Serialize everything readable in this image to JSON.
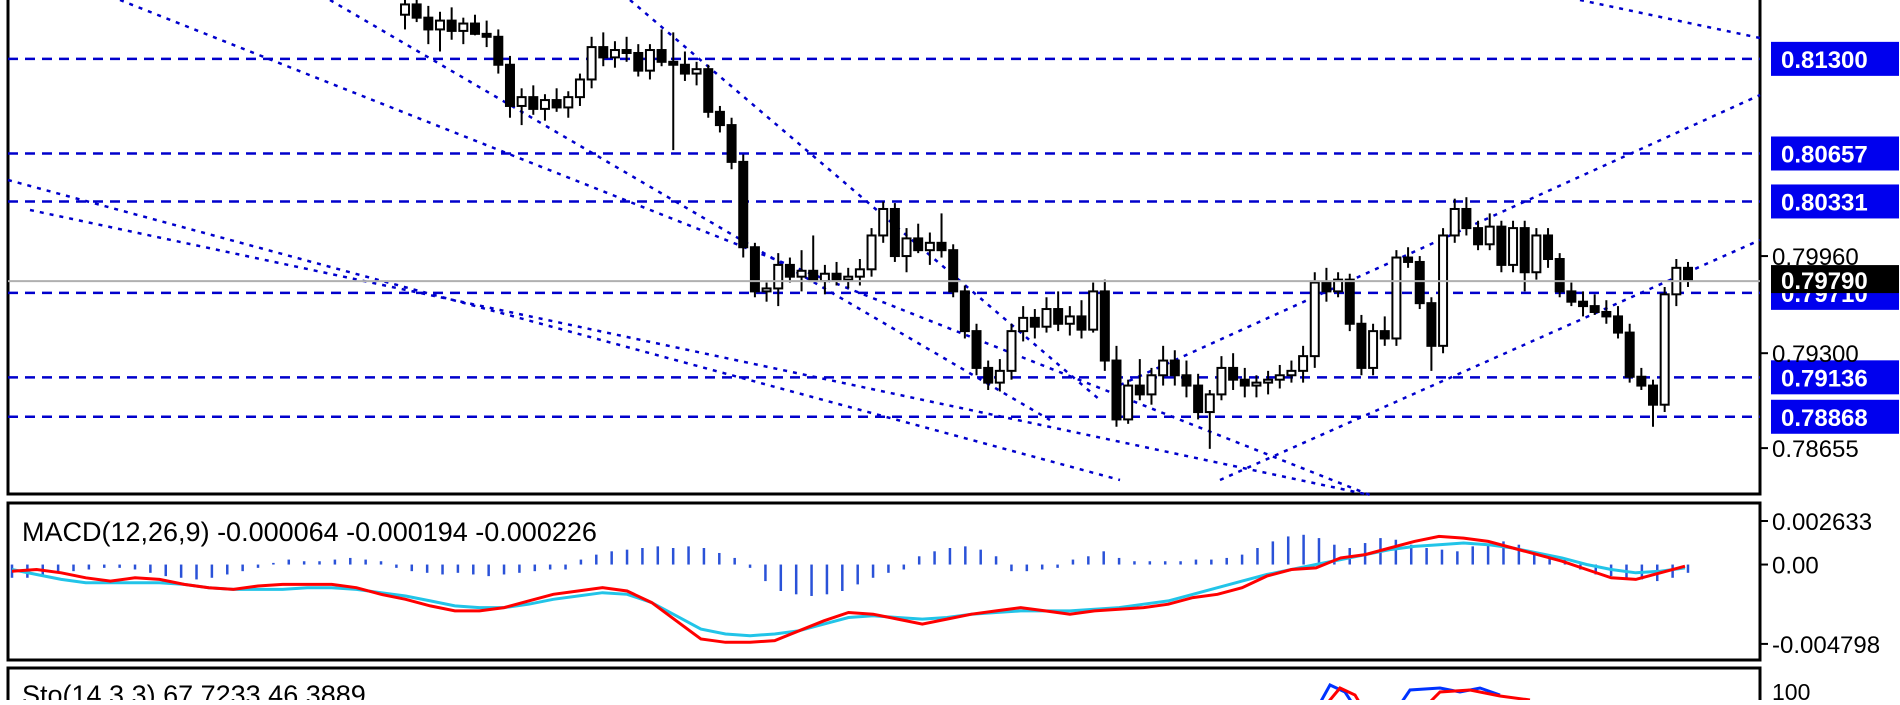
{
  "chart_data": [
    {
      "type": "candlestick",
      "panel": "price",
      "ylim": [
        0.7835,
        0.817
      ],
      "axis_ticks": [
        "0.79960",
        "0.79300",
        "0.78655"
      ],
      "level_lines": [
        {
          "label": "0.81300",
          "value": 0.813
        },
        {
          "label": "0.80657",
          "value": 0.80657
        },
        {
          "label": "0.80331",
          "value": 0.80331
        },
        {
          "label": "0.79710",
          "value": 0.7971
        },
        {
          "label": "0.79136",
          "value": 0.79136
        },
        {
          "label": "0.78868",
          "value": 0.78868
        }
      ],
      "current_price": {
        "label": "0.79790",
        "value": 0.7979
      },
      "candles": [
        [
          0.816,
          0.8171,
          0.815,
          0.8167
        ],
        [
          0.8167,
          0.817,
          0.8155,
          0.8158
        ],
        [
          0.8158,
          0.8166,
          0.814,
          0.815
        ],
        [
          0.815,
          0.8162,
          0.8135,
          0.8156
        ],
        [
          0.8156,
          0.8165,
          0.8143,
          0.8149
        ],
        [
          0.8149,
          0.8158,
          0.814,
          0.8154
        ],
        [
          0.8154,
          0.816,
          0.8146,
          0.8147
        ],
        [
          0.8147,
          0.8156,
          0.8138,
          0.8145
        ],
        [
          0.8145,
          0.815,
          0.812,
          0.8126
        ],
        [
          0.8126,
          0.8132,
          0.809,
          0.8098
        ],
        [
          0.8098,
          0.811,
          0.8085,
          0.8104
        ],
        [
          0.8104,
          0.8112,
          0.8092,
          0.8096
        ],
        [
          0.8096,
          0.8106,
          0.8088,
          0.8102
        ],
        [
          0.8102,
          0.811,
          0.8094,
          0.8097
        ],
        [
          0.8097,
          0.8108,
          0.809,
          0.8104
        ],
        [
          0.8104,
          0.812,
          0.8098,
          0.8116
        ],
        [
          0.8116,
          0.8145,
          0.811,
          0.8138
        ],
        [
          0.8138,
          0.8148,
          0.8125,
          0.8131
        ],
        [
          0.8131,
          0.8142,
          0.8124,
          0.8136
        ],
        [
          0.8136,
          0.8145,
          0.8128,
          0.8134
        ],
        [
          0.8134,
          0.814,
          0.8118,
          0.8122
        ],
        [
          0.8122,
          0.814,
          0.8116,
          0.8136
        ],
        [
          0.8136,
          0.815,
          0.8125,
          0.8128
        ],
        [
          0.8128,
          0.8148,
          0.8068,
          0.8126
        ],
        [
          0.8126,
          0.8135,
          0.8115,
          0.812
        ],
        [
          0.812,
          0.8128,
          0.8112,
          0.8123
        ],
        [
          0.8123,
          0.8126,
          0.809,
          0.8094
        ],
        [
          0.8094,
          0.8098,
          0.808,
          0.8085
        ],
        [
          0.8085,
          0.809,
          0.8055,
          0.806
        ],
        [
          0.806,
          0.8065,
          0.7995,
          0.8002
        ],
        [
          0.8002,
          0.8005,
          0.7968,
          0.7972
        ],
        [
          0.7972,
          0.7978,
          0.7965,
          0.7974
        ],
        [
          0.7974,
          0.7998,
          0.7962,
          0.799
        ],
        [
          0.799,
          0.7995,
          0.7978,
          0.7982
        ],
        [
          0.7982,
          0.8,
          0.7972,
          0.7986
        ],
        [
          0.7986,
          0.801,
          0.798,
          0.7979
        ],
        [
          0.7979,
          0.799,
          0.797,
          0.7984
        ],
        [
          0.7984,
          0.7992,
          0.7976,
          0.798
        ],
        [
          0.798,
          0.7988,
          0.7974,
          0.7982
        ],
        [
          0.7982,
          0.7994,
          0.7976,
          0.7987
        ],
        [
          0.7987,
          0.8015,
          0.7982,
          0.801
        ],
        [
          0.801,
          0.8033,
          0.8005,
          0.8028
        ],
        [
          0.8028,
          0.8032,
          0.7992,
          0.7996
        ],
        [
          0.7996,
          0.8015,
          0.7985,
          0.8008
        ],
        [
          0.8008,
          0.8018,
          0.7998,
          0.8
        ],
        [
          0.8,
          0.8012,
          0.799,
          0.8005
        ],
        [
          0.8005,
          0.8025,
          0.7995,
          0.8
        ],
        [
          0.8,
          0.8004,
          0.7968,
          0.7972
        ],
        [
          0.7972,
          0.7976,
          0.794,
          0.7945
        ],
        [
          0.7945,
          0.795,
          0.7915,
          0.792
        ],
        [
          0.792,
          0.7925,
          0.7905,
          0.791
        ],
        [
          0.791,
          0.7926,
          0.7904,
          0.7918
        ],
        [
          0.7918,
          0.795,
          0.7912,
          0.7945
        ],
        [
          0.7945,
          0.7962,
          0.7938,
          0.7954
        ],
        [
          0.7954,
          0.796,
          0.794,
          0.7948
        ],
        [
          0.7948,
          0.7968,
          0.7944,
          0.796
        ],
        [
          0.796,
          0.7972,
          0.7945,
          0.795
        ],
        [
          0.795,
          0.7962,
          0.7942,
          0.7955
        ],
        [
          0.7955,
          0.7966,
          0.794,
          0.7946
        ],
        [
          0.7946,
          0.7978,
          0.7944,
          0.7972
        ],
        [
          0.7972,
          0.798,
          0.7918,
          0.7925
        ],
        [
          0.7925,
          0.7935,
          0.788,
          0.7885
        ],
        [
          0.7885,
          0.7912,
          0.7882,
          0.7908
        ],
        [
          0.7908,
          0.7926,
          0.7898,
          0.7902
        ],
        [
          0.7902,
          0.792,
          0.7895,
          0.7915
        ],
        [
          0.7915,
          0.7935,
          0.7908,
          0.7925
        ],
        [
          0.7925,
          0.7932,
          0.7908,
          0.7915
        ],
        [
          0.7915,
          0.7925,
          0.79,
          0.7908
        ],
        [
          0.7908,
          0.7916,
          0.7885,
          0.789
        ],
        [
          0.789,
          0.7905,
          0.7865,
          0.7902
        ],
        [
          0.7902,
          0.7928,
          0.7898,
          0.792
        ],
        [
          0.792,
          0.793,
          0.7905,
          0.7912
        ],
        [
          0.7912,
          0.792,
          0.79,
          0.7908
        ],
        [
          0.7908,
          0.7915,
          0.79,
          0.791
        ],
        [
          0.791,
          0.7918,
          0.7902,
          0.7912
        ],
        [
          0.7912,
          0.7922,
          0.7906,
          0.7915
        ],
        [
          0.7915,
          0.7925,
          0.791,
          0.7918
        ],
        [
          0.7918,
          0.7935,
          0.791,
          0.7928
        ],
        [
          0.7928,
          0.7985,
          0.792,
          0.7978
        ],
        [
          0.7978,
          0.7988,
          0.7965,
          0.7972
        ],
        [
          0.7972,
          0.7985,
          0.7968,
          0.798
        ],
        [
          0.798,
          0.7984,
          0.7945,
          0.795
        ],
        [
          0.795,
          0.7956,
          0.7915,
          0.792
        ],
        [
          0.792,
          0.795,
          0.7915,
          0.7945
        ],
        [
          0.7945,
          0.7955,
          0.7935,
          0.794
        ],
        [
          0.794,
          0.8,
          0.7935,
          0.7995
        ],
        [
          0.7995,
          0.8002,
          0.7988,
          0.7992
        ],
        [
          0.7992,
          0.7996,
          0.796,
          0.7964
        ],
        [
          0.7964,
          0.7968,
          0.7918,
          0.7935
        ],
        [
          0.7935,
          0.8015,
          0.793,
          0.801
        ],
        [
          0.801,
          0.8035,
          0.8005,
          0.8028
        ],
        [
          0.8028,
          0.8036,
          0.801,
          0.8015
        ],
        [
          0.8015,
          0.802,
          0.8,
          0.8004
        ],
        [
          0.8004,
          0.8025,
          0.8,
          0.8016
        ],
        [
          0.8016,
          0.802,
          0.7985,
          0.799
        ],
        [
          0.799,
          0.802,
          0.7985,
          0.8015
        ],
        [
          0.8015,
          0.802,
          0.7972,
          0.7985
        ],
        [
          0.7985,
          0.8015,
          0.798,
          0.801
        ],
        [
          0.801,
          0.8015,
          0.7988,
          0.7994
        ],
        [
          0.7994,
          0.7998,
          0.7968,
          0.7972
        ],
        [
          0.7972,
          0.7978,
          0.7962,
          0.7965
        ],
        [
          0.7965,
          0.7972,
          0.7955,
          0.7962
        ],
        [
          0.7962,
          0.797,
          0.7956,
          0.7958
        ],
        [
          0.7958,
          0.7966,
          0.795,
          0.7955
        ],
        [
          0.7955,
          0.7962,
          0.794,
          0.7944
        ],
        [
          0.7944,
          0.795,
          0.791,
          0.7914
        ],
        [
          0.7914,
          0.792,
          0.7905,
          0.7908
        ],
        [
          0.7908,
          0.7912,
          0.788,
          0.7895
        ],
        [
          0.7895,
          0.7975,
          0.789,
          0.797
        ],
        [
          0.797,
          0.7994,
          0.7962,
          0.7988
        ],
        [
          0.7988,
          0.7992,
          0.7975,
          0.798
        ]
      ]
    },
    {
      "type": "line",
      "panel": "indicator",
      "title": "MACD(12,26,9) -0.000064 -0.000194 -0.000226",
      "ylim": [
        -0.00565,
        0.0036
      ],
      "axis_ticks": [
        {
          "label": "0.002633",
          "value": 0.002633
        },
        {
          "label": "0.00",
          "value": 0.0
        },
        {
          "label": "-0.004798",
          "value": -0.004798
        }
      ],
      "histogram": [
        -0.0008,
        -0.0008,
        -0.0007,
        -0.0005,
        -0.0004,
        -0.0003,
        -0.0002,
        -0.0002,
        -0.0003,
        -0.0005,
        -0.0007,
        -0.0008,
        -0.0009,
        -0.0008,
        -0.0006,
        -0.0004,
        -0.0002,
        0.0001,
        0.0003,
        0.0002,
        0.0002,
        0.0003,
        0.0004,
        0.0003,
        0.0002,
        -0.0002,
        -0.0004,
        -0.0005,
        -0.0006,
        -0.0005,
        -0.0006,
        -0.0007,
        -0.0006,
        -0.0005,
        -0.0004,
        -0.0003,
        -0.0003,
        0.0003,
        0.0006,
        0.0008,
        0.0009,
        0.001,
        0.0011,
        0.001,
        0.0011,
        0.001,
        0.0007,
        0.0004,
        -0.0002,
        -0.001,
        -0.0016,
        -0.0018,
        -0.0019,
        -0.0018,
        -0.0016,
        -0.0012,
        -0.0008,
        -0.0005,
        -0.0003,
        0.0005,
        0.0008,
        0.001,
        0.0011,
        0.0009,
        0.0005,
        -0.0004,
        -0.0004,
        -0.0003,
        -0.0002,
        0.0003,
        0.0005,
        0.0008,
        0.0004,
        0.0002,
        0.0002,
        0.0002,
        0.0002,
        0.0003,
        0.0003,
        0.0004,
        0.0006,
        0.001,
        0.0014,
        0.0017,
        0.0018,
        0.0016,
        0.0012,
        0.001,
        0.0013,
        0.0016,
        0.0015,
        0.0012,
        0.001,
        0.0009,
        0.0008,
        0.0011,
        0.0012,
        0.0014,
        0.0012,
        0.0008,
        0.0005,
        0.0004,
        -0.0003,
        -0.0006,
        -0.0007,
        -0.0008,
        -0.0009,
        -0.001,
        -0.0008,
        -0.0005
      ],
      "macd": [
        -0.0004,
        -0.0003,
        -0.0005,
        -0.0008,
        -0.001,
        -0.0008,
        -0.0009,
        -0.0012,
        -0.0014,
        -0.0015,
        -0.0013,
        -0.0012,
        -0.0012,
        -0.0012,
        -0.0014,
        -0.0018,
        -0.0021,
        -0.0025,
        -0.0028,
        -0.0028,
        -0.0026,
        -0.0022,
        -0.0018,
        -0.0016,
        -0.0014,
        -0.0016,
        -0.0023,
        -0.0034,
        -0.0045,
        -0.0047,
        -0.0047,
        -0.0046,
        -0.004,
        -0.0034,
        -0.0029,
        -0.003,
        -0.0033,
        -0.0036,
        -0.0033,
        -0.003,
        -0.0028,
        -0.0026,
        -0.0028,
        -0.003,
        -0.0028,
        -0.0027,
        -0.0026,
        -0.0024,
        -0.002,
        -0.0018,
        -0.0014,
        -0.0007,
        -0.0003,
        -0.0002,
        0.0004,
        0.0006,
        0.001,
        0.0014,
        0.0017,
        0.0016,
        0.0014,
        0.001,
        0.0006,
        0.0002,
        -0.0003,
        -0.0008,
        -0.0009,
        -0.0005,
        -0.0001
      ],
      "signal": [
        -0.0003,
        -0.0006,
        -0.0009,
        -0.0011,
        -0.0011,
        -0.0011,
        -0.0011,
        -0.0012,
        -0.0014,
        -0.0015,
        -0.0015,
        -0.0015,
        -0.0014,
        -0.0014,
        -0.0015,
        -0.0017,
        -0.0019,
        -0.0022,
        -0.0025,
        -0.0026,
        -0.0026,
        -0.0024,
        -0.0021,
        -0.0019,
        -0.0017,
        -0.0018,
        -0.0023,
        -0.0031,
        -0.0039,
        -0.0042,
        -0.0043,
        -0.0042,
        -0.004,
        -0.0036,
        -0.0032,
        -0.0031,
        -0.0032,
        -0.0033,
        -0.0032,
        -0.003,
        -0.0029,
        -0.0028,
        -0.0028,
        -0.0028,
        -0.0027,
        -0.0026,
        -0.0024,
        -0.0022,
        -0.0018,
        -0.0014,
        -0.001,
        -0.0006,
        -0.0003,
        0.0,
        0.0003,
        0.0006,
        0.0009,
        0.0011,
        0.0012,
        0.0013,
        0.0012,
        0.001,
        0.0007,
        0.0004,
        0.0,
        -0.0003,
        -0.0005,
        -0.0004,
        -0.0002
      ]
    },
    {
      "type": "line",
      "panel": "indicator",
      "title": "Sto(14,3,3) 67.7233 46.3889",
      "axis_ticks": [
        {
          "label": "100",
          "value": 100
        }
      ]
    }
  ]
}
